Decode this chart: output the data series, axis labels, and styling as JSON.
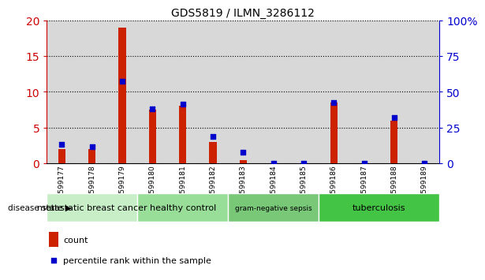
{
  "title": "GDS5819 / ILMN_3286112",
  "samples": [
    "GSM1599177",
    "GSM1599178",
    "GSM1599179",
    "GSM1599180",
    "GSM1599181",
    "GSM1599182",
    "GSM1599183",
    "GSM1599184",
    "GSM1599185",
    "GSM1599186",
    "GSM1599187",
    "GSM1599188",
    "GSM1599189"
  ],
  "counts": [
    2.0,
    2.0,
    19.0,
    7.5,
    8.0,
    3.0,
    0.5,
    0.0,
    0.0,
    8.5,
    0.0,
    6.0,
    0.0
  ],
  "percentiles": [
    13.0,
    11.5,
    57.5,
    38.0,
    41.5,
    18.5,
    7.5,
    0.0,
    0.0,
    42.5,
    0.0,
    32.0,
    0.0
  ],
  "disease_groups": [
    {
      "label": "metastatic breast cancer",
      "start": 0,
      "end": 3,
      "color": "#c8eec8"
    },
    {
      "label": "healthy control",
      "start": 3,
      "end": 6,
      "color": "#98de98"
    },
    {
      "label": "gram-negative sepsis",
      "start": 6,
      "end": 9,
      "color": "#78c878"
    },
    {
      "label": "tuberculosis",
      "start": 9,
      "end": 13,
      "color": "#44c444"
    }
  ],
  "ylim_left": [
    0,
    20
  ],
  "ylim_right": [
    0,
    100
  ],
  "yticks_left": [
    0,
    5,
    10,
    15,
    20
  ],
  "yticks_right": [
    0,
    25,
    50,
    75,
    100
  ],
  "left_axis_color": "#cc0000",
  "right_axis_color": "#0000cc",
  "bar_color": "#cc2200",
  "dot_color": "#0000cc",
  "bg_color": "#ffffff",
  "col_bg_color": "#d8d8d8",
  "disease_label": "disease state",
  "legend_count": "count",
  "legend_percentile": "percentile rank within the sample"
}
